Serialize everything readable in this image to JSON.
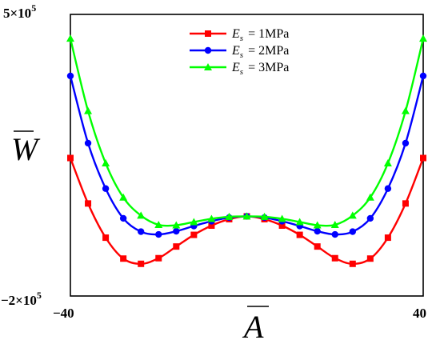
{
  "chart_data": {
    "type": "line",
    "xlabel": "A",
    "ylabel": "W",
    "xlim": [
      -40,
      40
    ],
    "ylim": [
      -200000,
      500000
    ],
    "x_tick_labels": {
      "min": "−40",
      "max": "40"
    },
    "y_tick_labels": {
      "min": "−2×10",
      "min_exp": "5",
      "max": "5×10",
      "max_exp": "5"
    },
    "grid": false,
    "legend": "top-center",
    "legend_symbol": "E",
    "legend_subscript": "s",
    "series": [
      {
        "name": "= 1MPa",
        "color": "#ff0000",
        "marker": "square",
        "x": [
          -40,
          -36,
          -32,
          -28,
          -24,
          -20,
          -16,
          -12,
          -8,
          -4,
          0,
          4,
          8,
          12,
          16,
          20,
          24,
          28,
          32,
          36,
          40
        ],
        "y": [
          143000,
          30000,
          -55000,
          -107000,
          -120000,
          -106000,
          -77000,
          -48000,
          -25000,
          -9000,
          -2000,
          -9000,
          -25000,
          -48000,
          -77000,
          -106000,
          -120000,
          -107000,
          -55000,
          30000,
          143000
        ]
      },
      {
        "name": "= 2MPa",
        "color": "#0000ff",
        "marker": "circle",
        "x": [
          -40,
          -36,
          -32,
          -28,
          -24,
          -20,
          -16,
          -12,
          -8,
          -4,
          0,
          4,
          8,
          12,
          16,
          20,
          24,
          28,
          32,
          36,
          40
        ],
        "y": [
          347000,
          180000,
          67000,
          -7000,
          -40000,
          -47000,
          -39000,
          -26000,
          -14000,
          -5000,
          -2000,
          -5000,
          -14000,
          -26000,
          -39000,
          -47000,
          -40000,
          -7000,
          67000,
          180000,
          347000
        ]
      },
      {
        "name": "= 3MPa",
        "color": "#00ff00",
        "marker": "triangle",
        "x": [
          -40,
          -36,
          -32,
          -28,
          -24,
          -20,
          -16,
          -12,
          -8,
          -4,
          0,
          4,
          8,
          12,
          16,
          20,
          24,
          28,
          32,
          36,
          40
        ],
        "y": [
          440000,
          260000,
          130000,
          45000,
          0,
          -23000,
          -24000,
          -16000,
          -8000,
          -3000,
          -2000,
          -3000,
          -8000,
          -16000,
          -24000,
          -23000,
          0,
          45000,
          130000,
          260000,
          440000
        ]
      }
    ]
  }
}
